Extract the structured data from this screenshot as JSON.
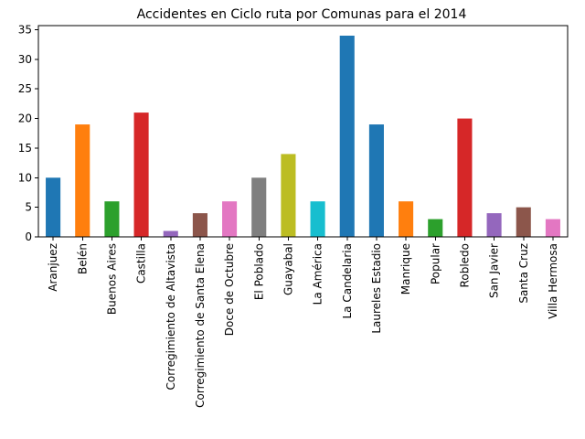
{
  "chart_data": {
    "type": "bar",
    "title": "Accidentes en Ciclo ruta por Comunas para el 2014",
    "xlabel": "",
    "ylabel": "",
    "ylim": [
      0,
      35.7
    ],
    "yticks": [
      0,
      5,
      10,
      15,
      20,
      25,
      30,
      35
    ],
    "grid": false,
    "categories": [
      "Aranjuez",
      "Belén",
      "Buenos Aires",
      "Castilla",
      "Corregimiento de Altavista",
      "Corregimiento de Santa Elena",
      "Doce de Octubre",
      "El Poblado",
      "Guayabal",
      "La América",
      "La Candelaria",
      "Laureles Estadio",
      "Manrique",
      "Popular",
      "Robledo",
      "San Javier",
      "Santa Cruz",
      "Villa Hermosa"
    ],
    "values": [
      10,
      19,
      6,
      21,
      1,
      4,
      6,
      10,
      14,
      6,
      34,
      19,
      6,
      3,
      20,
      4,
      5,
      3
    ],
    "colors": [
      "#1f77b4",
      "#ff7f0e",
      "#2ca02c",
      "#d62728",
      "#9467bd",
      "#8c564b",
      "#e377c2",
      "#7f7f7f",
      "#bcbd22",
      "#17becf",
      "#1f77b4",
      "#1f77b4",
      "#ff7f0e",
      "#2ca02c",
      "#d62728",
      "#9467bd",
      "#8c564b",
      "#e377c2"
    ]
  }
}
